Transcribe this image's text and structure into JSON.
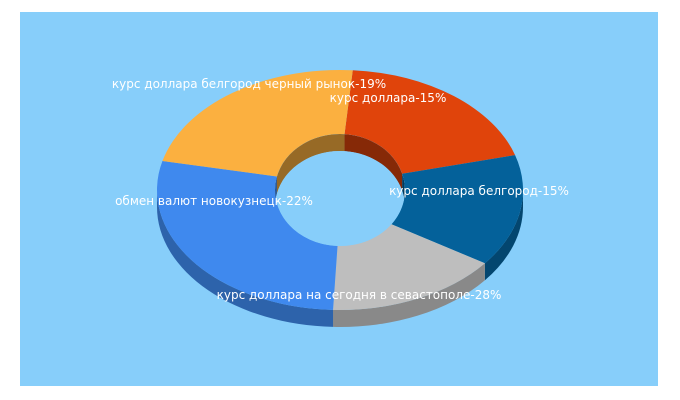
{
  "chart_data": {
    "type": "pie",
    "style": "3d-donut",
    "background": "#87CEFA",
    "slices": [
      {
        "label": "курс доллара белгород черный рынок-19%",
        "value": 19,
        "color": "#E0440B"
      },
      {
        "label": "курс доллара-15%",
        "value": 15,
        "color": "#04619A"
      },
      {
        "label": "курс доллара белгород-15%",
        "value": 15,
        "color": "#BEBEBE"
      },
      {
        "label": "курс доллара на сегодня в севастополе-28%",
        "value": 28,
        "color": "#3F89EE"
      },
      {
        "label": "обмен валют новокузнецк-22%",
        "value": 22,
        "color": "#FBB040"
      }
    ]
  }
}
